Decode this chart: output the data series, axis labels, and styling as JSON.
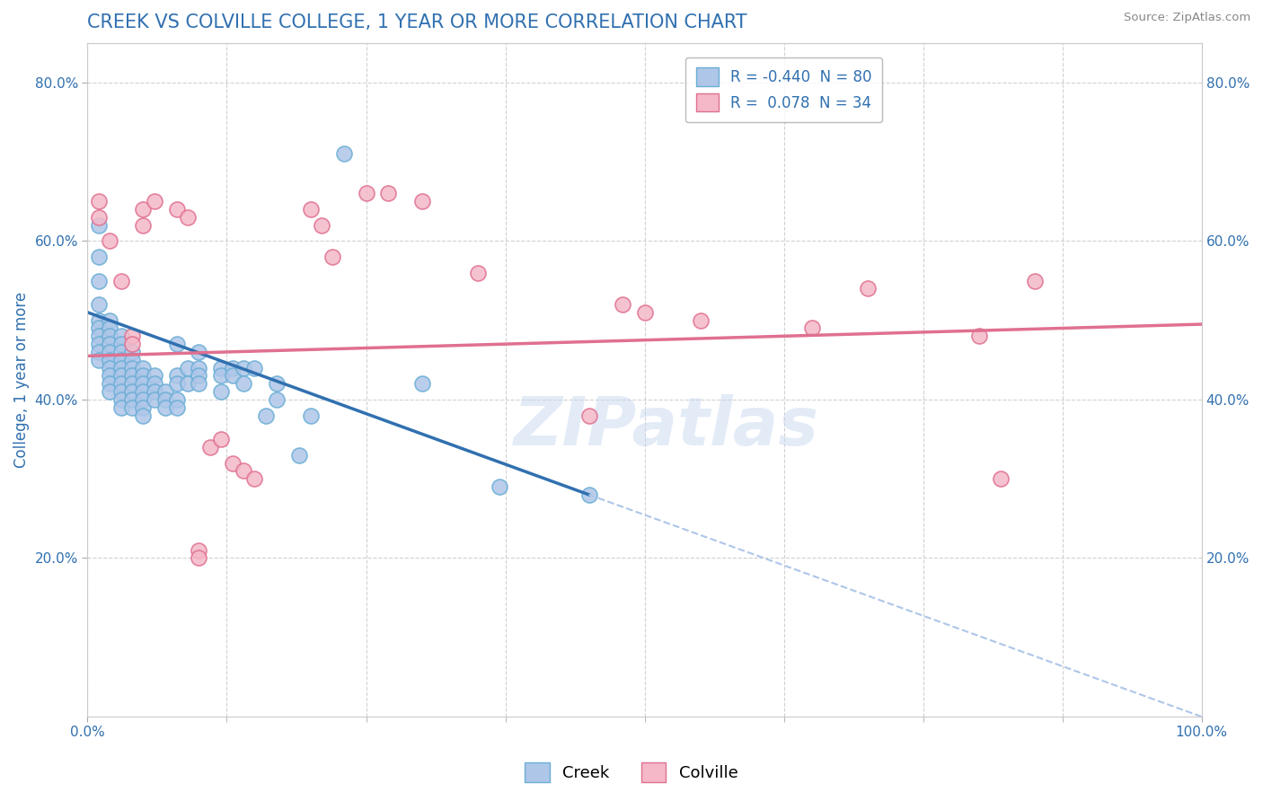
{
  "title": "CREEK VS COLVILLE COLLEGE, 1 YEAR OR MORE CORRELATION CHART",
  "ylabel": "College, 1 year or more",
  "source_text": "Source: ZipAtlas.com",
  "watermark": "ZIPatlas",
  "legend_entries": [
    {
      "label": "R = -0.440  N = 80",
      "color": "#aec6e8"
    },
    {
      "label": "R =  0.078  N = 34",
      "color": "#f4b8c8"
    }
  ],
  "creek_color": "#aec6e8",
  "creek_edge": "#6baed6",
  "colville_color": "#f4b8c8",
  "colville_edge": "#e07090",
  "blue_line_color": "#3070b0",
  "pink_line_color": "#e07090",
  "dashed_color": "#aec6e8",
  "background_color": "#ffffff",
  "grid_color": "#cccccc",
  "title_color": "#3070b0",
  "axis_label_color": "#3070b0",
  "tick_color": "#3070b0",
  "creek_points": [
    [
      1,
      62
    ],
    [
      1,
      58
    ],
    [
      1,
      55
    ],
    [
      1,
      52
    ],
    [
      1,
      50
    ],
    [
      1,
      49
    ],
    [
      1,
      48
    ],
    [
      1,
      47
    ],
    [
      1,
      46
    ],
    [
      1,
      45
    ],
    [
      2,
      50
    ],
    [
      2,
      49
    ],
    [
      2,
      48
    ],
    [
      2,
      47
    ],
    [
      2,
      46
    ],
    [
      2,
      45
    ],
    [
      2,
      44
    ],
    [
      2,
      43
    ],
    [
      2,
      42
    ],
    [
      2,
      41
    ],
    [
      3,
      48
    ],
    [
      3,
      47
    ],
    [
      3,
      46
    ],
    [
      3,
      45
    ],
    [
      3,
      44
    ],
    [
      3,
      43
    ],
    [
      3,
      42
    ],
    [
      3,
      41
    ],
    [
      3,
      40
    ],
    [
      3,
      39
    ],
    [
      4,
      46
    ],
    [
      4,
      45
    ],
    [
      4,
      44
    ],
    [
      4,
      43
    ],
    [
      4,
      42
    ],
    [
      4,
      41
    ],
    [
      4,
      40
    ],
    [
      4,
      39
    ],
    [
      5,
      44
    ],
    [
      5,
      43
    ],
    [
      5,
      42
    ],
    [
      5,
      41
    ],
    [
      5,
      40
    ],
    [
      5,
      39
    ],
    [
      5,
      38
    ],
    [
      6,
      43
    ],
    [
      6,
      42
    ],
    [
      6,
      41
    ],
    [
      6,
      40
    ],
    [
      7,
      41
    ],
    [
      7,
      40
    ],
    [
      7,
      39
    ],
    [
      8,
      47
    ],
    [
      8,
      43
    ],
    [
      8,
      42
    ],
    [
      8,
      40
    ],
    [
      8,
      39
    ],
    [
      9,
      44
    ],
    [
      9,
      42
    ],
    [
      10,
      46
    ],
    [
      10,
      44
    ],
    [
      10,
      43
    ],
    [
      10,
      42
    ],
    [
      12,
      44
    ],
    [
      12,
      43
    ],
    [
      12,
      41
    ],
    [
      13,
      44
    ],
    [
      13,
      43
    ],
    [
      14,
      44
    ],
    [
      14,
      42
    ],
    [
      15,
      44
    ],
    [
      16,
      38
    ],
    [
      17,
      42
    ],
    [
      17,
      40
    ],
    [
      19,
      33
    ],
    [
      20,
      38
    ],
    [
      23,
      71
    ],
    [
      30,
      42
    ],
    [
      37,
      29
    ],
    [
      45,
      28
    ]
  ],
  "colville_points": [
    [
      1,
      65
    ],
    [
      1,
      63
    ],
    [
      2,
      60
    ],
    [
      3,
      55
    ],
    [
      4,
      48
    ],
    [
      4,
      47
    ],
    [
      5,
      64
    ],
    [
      5,
      62
    ],
    [
      6,
      65
    ],
    [
      8,
      64
    ],
    [
      9,
      63
    ],
    [
      10,
      21
    ],
    [
      10,
      20
    ],
    [
      11,
      34
    ],
    [
      12,
      35
    ],
    [
      13,
      32
    ],
    [
      14,
      31
    ],
    [
      15,
      30
    ],
    [
      20,
      64
    ],
    [
      21,
      62
    ],
    [
      22,
      58
    ],
    [
      25,
      66
    ],
    [
      27,
      66
    ],
    [
      30,
      65
    ],
    [
      35,
      56
    ],
    [
      45,
      38
    ],
    [
      48,
      52
    ],
    [
      50,
      51
    ],
    [
      55,
      50
    ],
    [
      65,
      49
    ],
    [
      70,
      54
    ],
    [
      80,
      48
    ],
    [
      82,
      30
    ],
    [
      85,
      55
    ]
  ],
  "blue_line_solid": [
    [
      0,
      51
    ],
    [
      45,
      28
    ]
  ],
  "blue_line_dashed": [
    [
      45,
      28
    ],
    [
      100,
      0
    ]
  ],
  "pink_line": [
    [
      0,
      45.5
    ],
    [
      100,
      49.5
    ]
  ],
  "xlim": [
    0,
    100
  ],
  "ylim": [
    0,
    85
  ],
  "x_ticks_minor": [
    12.5,
    25,
    37.5,
    50,
    62.5,
    75,
    87.5
  ],
  "y_ticks": [
    20,
    40,
    60,
    80
  ],
  "figsize": [
    14.06,
    8.92
  ],
  "dpi": 100
}
